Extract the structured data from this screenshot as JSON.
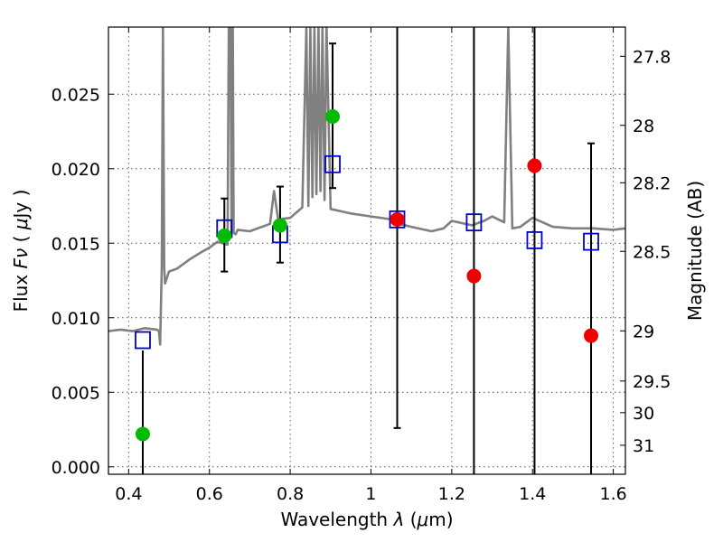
{
  "chart_data": {
    "type": "scatter",
    "xlabel_text": "Wavelength",
    "xlabel_symbol": "λ",
    "xlabel_unit_open": "(",
    "xlabel_unit_mu": "μ",
    "xlabel_unit_rest": "m)",
    "ylabel_text": "Flux",
    "ylabel_symbol": "Fν",
    "ylabel_unit_open": "(",
    "ylabel_unit_mu": "μ",
    "ylabel_unit_rest": "Jy )",
    "y2label": "Magnitude (AB)",
    "xlim": [
      0.35,
      1.63
    ],
    "ylim": [
      -0.0005,
      0.0295
    ],
    "grid": true,
    "x_ticks": [
      0.4,
      0.6,
      0.8,
      1.0,
      1.2,
      1.4,
      1.6
    ],
    "x_tick_labels": [
      "0.4",
      "0.6",
      "0.8",
      "1",
      "1.2",
      "1.4",
      "1.6"
    ],
    "y_ticks": [
      0.0,
      0.005,
      0.01,
      0.015,
      0.02,
      0.025
    ],
    "y_tick_labels": [
      "0.000",
      "0.005",
      "0.010",
      "0.015",
      "0.020",
      "0.025"
    ],
    "mag_ticks": [
      27.8,
      28,
      28.2,
      28.5,
      29,
      29.5,
      30,
      31
    ],
    "mag_tick_labels": [
      "27.8",
      "28",
      "28.2",
      "28.5",
      "29",
      "29.5",
      "30",
      "31"
    ],
    "series": [
      {
        "kind": "spectrum",
        "color": "#808080",
        "x": [
          0.35,
          0.38,
          0.41,
          0.44,
          0.47,
          0.475,
          0.478,
          0.482,
          0.485,
          0.488,
          0.49,
          0.495,
          0.5,
          0.52,
          0.55,
          0.58,
          0.6,
          0.62,
          0.645,
          0.648,
          0.652,
          0.655,
          0.658,
          0.66,
          0.665,
          0.67,
          0.7,
          0.73,
          0.75,
          0.76,
          0.77,
          0.8,
          0.83,
          0.84,
          0.845,
          0.85,
          0.855,
          0.86,
          0.865,
          0.87,
          0.875,
          0.88,
          0.885,
          0.89,
          0.9,
          0.95,
          1.0,
          1.05,
          1.07,
          1.1,
          1.15,
          1.18,
          1.2,
          1.25,
          1.28,
          1.3,
          1.33,
          1.34,
          1.35,
          1.37,
          1.4,
          1.45,
          1.5,
          1.55,
          1.6,
          1.63
        ],
        "y": [
          0.0091,
          0.0092,
          0.0091,
          0.0093,
          0.0092,
          0.0091,
          0.0082,
          0.0134,
          0.0295,
          0.0134,
          0.0123,
          0.0127,
          0.0131,
          0.0133,
          0.0139,
          0.0144,
          0.0147,
          0.0151,
          0.0149,
          0.0295,
          0.0295,
          0.0154,
          0.0295,
          0.0157,
          0.0156,
          0.0159,
          0.0158,
          0.0161,
          0.0163,
          0.0185,
          0.0166,
          0.0167,
          0.0174,
          0.0295,
          0.0175,
          0.0295,
          0.0181,
          0.0295,
          0.0183,
          0.0295,
          0.0185,
          0.0295,
          0.0179,
          0.0295,
          0.0173,
          0.017,
          0.0168,
          0.0166,
          0.0163,
          0.0161,
          0.0158,
          0.016,
          0.0165,
          0.0162,
          0.0165,
          0.0168,
          0.0164,
          0.0295,
          0.016,
          0.0161,
          0.0167,
          0.0161,
          0.016,
          0.016,
          0.0159,
          0.016
        ]
      },
      {
        "kind": "model-photometry",
        "marker": "open-square",
        "color": "#0000cc",
        "x": [
          0.435,
          0.637,
          0.775,
          0.905,
          1.065,
          1.255,
          1.405,
          1.545
        ],
        "y": [
          0.0085,
          0.016,
          0.0156,
          0.0203,
          0.0166,
          0.0164,
          0.0152,
          0.0151
        ]
      },
      {
        "kind": "detections",
        "marker": "filled-circle",
        "color": "#00bb00",
        "x": [
          0.435,
          0.637,
          0.775,
          0.905
        ],
        "y": [
          0.0022,
          0.0155,
          0.0162,
          0.0235
        ],
        "err_low": [
          null,
          0.0131,
          0.0137,
          0.0187
        ],
        "err_high": [
          null,
          0.018,
          0.0188,
          0.0284
        ],
        "capped": [
          false,
          true,
          true,
          true
        ]
      },
      {
        "kind": "upper-limits",
        "marker": "filled-circle",
        "color": "#ee0000",
        "x": [
          1.065,
          1.255,
          1.405,
          1.545
        ],
        "y": [
          0.0166,
          0.0128,
          0.0202,
          0.0088
        ],
        "err_low": [
          0.0026,
          null,
          null,
          null
        ],
        "err_high": [
          0.0295,
          0.0295,
          0.0295,
          0.0217
        ],
        "capped": [
          true,
          false,
          false,
          true
        ]
      },
      {
        "kind": "errorbar-only",
        "x": [
          0.435
        ],
        "err_low": [
          null
        ],
        "err_high": [
          0.0078
        ],
        "capped": [
          false
        ]
      }
    ]
  }
}
